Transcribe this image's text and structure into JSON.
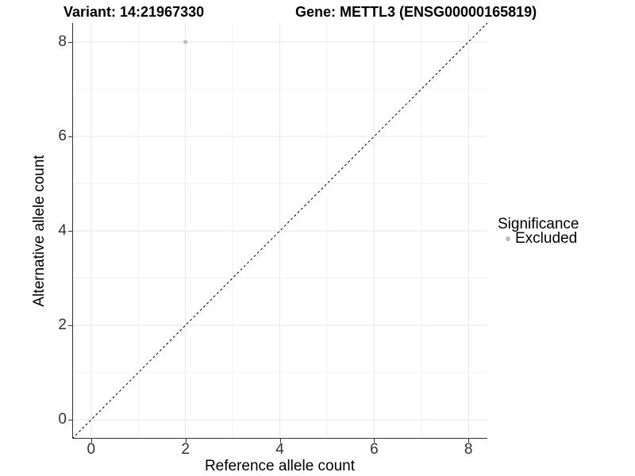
{
  "chart_data": {
    "type": "scatter",
    "title_left": "Variant: 14:21967330",
    "title_right": "Gene: METTL3 (ENSG00000165819)",
    "xlabel": "Reference allele count",
    "ylabel": "Alternative allele count",
    "xlim": [
      -0.4,
      8.4
    ],
    "ylim": [
      -0.4,
      8.4
    ],
    "xticks": [
      0,
      2,
      4,
      6,
      8
    ],
    "yticks": [
      0,
      2,
      4,
      6,
      8
    ],
    "xticks_minor": [
      1,
      3,
      5,
      7
    ],
    "yticks_minor": [
      1,
      3,
      5,
      7
    ],
    "grid": "major-and-minor",
    "identity_line": {
      "from": [
        -0.4,
        -0.4
      ],
      "to": [
        8.4,
        8.4
      ],
      "style": "dashed",
      "color": "#000000"
    },
    "series": [
      {
        "name": "Excluded",
        "color": "#bebebe",
        "point_radius": 2.6,
        "points": [
          {
            "x": 2,
            "y": 8
          }
        ]
      }
    ],
    "legend": {
      "title": "Significance",
      "position": "right",
      "entries": [
        {
          "label": "Excluded",
          "color": "#bebebe"
        }
      ]
    },
    "colors": {
      "grid_major": "#e6e6e6",
      "grid_minor": "#f2f2f2",
      "axis": "#333333",
      "tick_label": "#333333",
      "background": "#ffffff"
    }
  }
}
